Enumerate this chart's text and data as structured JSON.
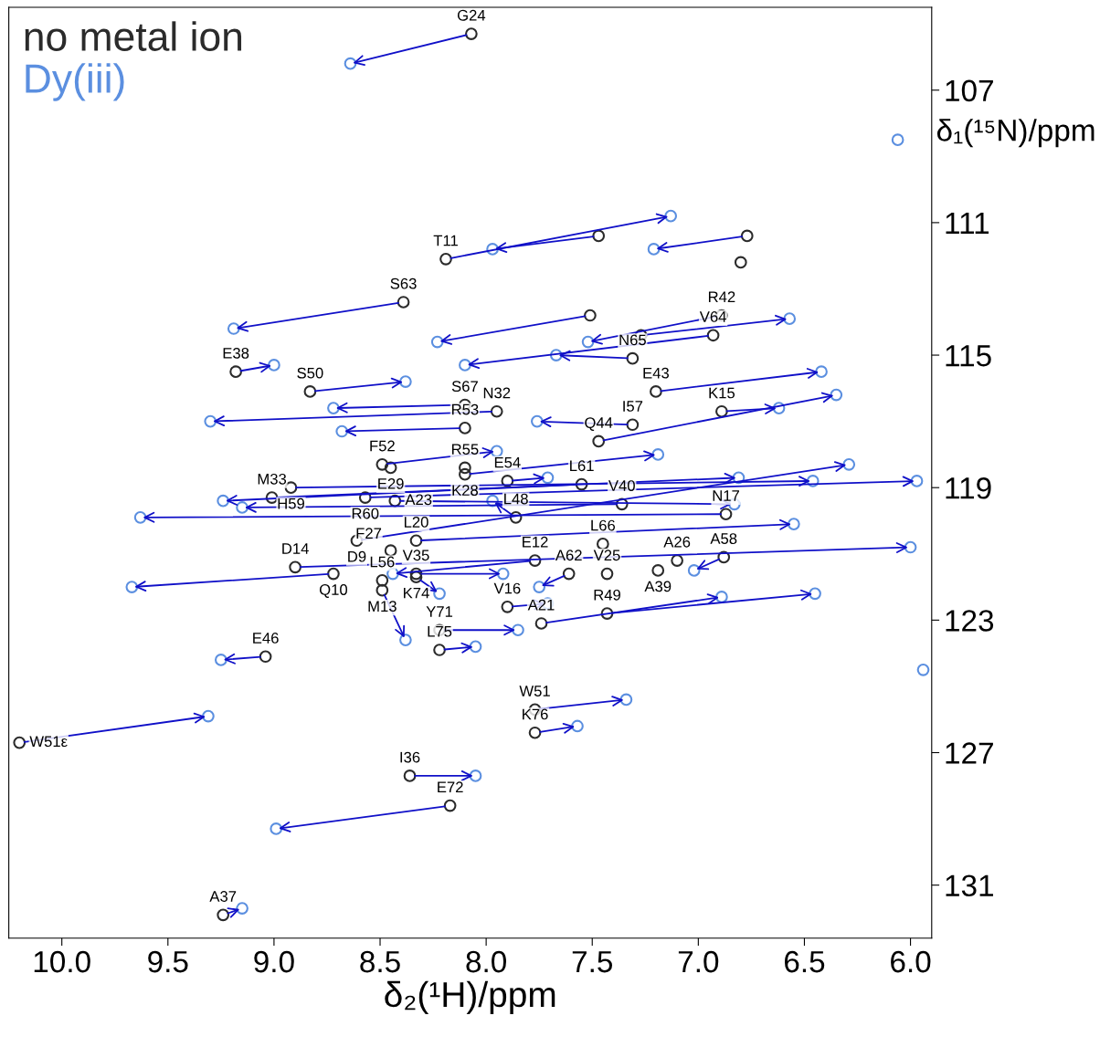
{
  "chart_data": {
    "type": "scatter",
    "xlabel": "δ₂(¹H)/ppm",
    "ylabel": "δ₁(¹⁵N)/ppm",
    "xlim": [
      10.25,
      5.9
    ],
    "xticks": [
      {
        "value": 10.0,
        "label": "10.0"
      },
      9.5,
      {
        "value": 9.0,
        "label": "9.0"
      },
      8.5,
      {
        "value": 8.0,
        "label": "8.0"
      },
      7.5,
      {
        "value": 7.0,
        "label": "7.0"
      },
      6.5,
      {
        "value": 6.0,
        "label": "6.0"
      }
    ],
    "ylim": [
      132.6,
      104.5
    ],
    "yticks": [
      107,
      111,
      115,
      119,
      123,
      127,
      131
    ],
    "grid": false,
    "legend": "top left",
    "marker": "circle",
    "series": [
      {
        "name": "no metal ion",
        "color": "#2b2b2b",
        "x": [
          8.07,
          8.19,
          7.47,
          6.77,
          8.39,
          7.51,
          6.89,
          7.27,
          6.93,
          7.31,
          9.18,
          8.83,
          8.1,
          7.95,
          7.2,
          6.89,
          7.47,
          8.1,
          7.31,
          8.49,
          8.45,
          8.1,
          8.1,
          7.9,
          9.01,
          8.92,
          7.55,
          7.36,
          8.57,
          8.43,
          6.87,
          7.86,
          8.33,
          8.61,
          8.9,
          8.72,
          7.77,
          7.61,
          7.45,
          7.1,
          6.88,
          8.33,
          8.33,
          8.49,
          7.9,
          7.43,
          7.19,
          7.43,
          7.74,
          8.22,
          8.22,
          9.04,
          7.77,
          7.77,
          10.2,
          8.36,
          8.17,
          9.24,
          8.49,
          8.45,
          6.8,
          null,
          null
        ],
        "values": [
          105.3,
          112.1,
          111.4,
          111.4,
          113.4,
          113.8,
          113.8,
          114.4,
          114.4,
          115.1,
          115.5,
          116.1,
          116.5,
          116.7,
          116.1,
          116.7,
          117.6,
          117.2,
          117.1,
          118.3,
          118.4,
          118.4,
          118.6,
          118.8,
          119.3,
          119.0,
          118.9,
          119.5,
          119.3,
          119.4,
          119.8,
          119.9,
          120.6,
          120.6,
          121.4,
          121.6,
          121.2,
          121.6,
          120.7,
          121.2,
          121.1,
          121.6,
          121.7,
          122.1,
          122.6,
          121.6,
          121.5,
          122.8,
          123.1,
          123.3,
          123.9,
          124.1,
          125.7,
          126.4,
          126.7,
          127.7,
          128.6,
          131.9,
          121.8,
          120.9,
          112.2,
          null,
          null
        ]
      },
      {
        "name": "Dy(iii)",
        "color": "#5b8fe0",
        "x": [
          8.64,
          7.13,
          7.97,
          7.21,
          9.19,
          8.23,
          7.52,
          6.57,
          8.1,
          7.67,
          9.0,
          8.38,
          8.72,
          9.3,
          6.42,
          6.62,
          6.35,
          8.68,
          7.76,
          7.95,
          null,
          null,
          7.19,
          7.71,
          6.81,
          6.46,
          9.24,
          9.15,
          5.97,
          6.83,
          9.63,
          7.97,
          6.55,
          6.29,
          6.0,
          9.67,
          8.44,
          7.75,
          null,
          null,
          7.02,
          7.92,
          8.22,
          8.38,
          7.71,
          null,
          null,
          6.45,
          6.89,
          7.85,
          8.05,
          9.25,
          7.34,
          7.57,
          9.31,
          8.05,
          8.99,
          9.15,
          null,
          null,
          null,
          6.06,
          5.94
        ],
        "values": [
          106.2,
          110.8,
          111.8,
          111.8,
          114.2,
          114.6,
          114.6,
          113.9,
          115.3,
          115.0,
          115.3,
          115.8,
          116.6,
          117.0,
          115.5,
          116.6,
          116.2,
          117.3,
          117.0,
          117.9,
          null,
          null,
          118.0,
          118.7,
          118.7,
          118.8,
          119.4,
          119.6,
          118.8,
          119.5,
          119.9,
          119.4,
          120.1,
          118.3,
          120.8,
          122.0,
          121.6,
          122.0,
          null,
          null,
          121.5,
          121.6,
          122.2,
          123.6,
          122.5,
          null,
          null,
          122.2,
          122.3,
          123.3,
          123.8,
          124.2,
          125.4,
          126.2,
          125.9,
          127.7,
          129.3,
          131.7,
          null,
          null,
          null,
          108.5,
          124.5
        ]
      }
    ],
    "annotations": [
      {
        "text": "G24",
        "x": 8.07,
        "y": 105.3
      },
      {
        "text": "T11",
        "x": 8.19,
        "y": 112.1
      },
      {
        "text": "S63",
        "x": 8.39,
        "y": 113.4
      },
      {
        "text": "R42",
        "x": 6.89,
        "y": 113.8
      },
      {
        "text": "V64",
        "x": 6.93,
        "y": 114.4
      },
      {
        "text": "N65",
        "x": 7.31,
        "y": 115.1
      },
      {
        "text": "E38",
        "x": 9.18,
        "y": 115.5
      },
      {
        "text": "S50",
        "x": 8.83,
        "y": 116.1
      },
      {
        "text": "S67",
        "x": 8.1,
        "y": 116.5
      },
      {
        "text": "N32",
        "x": 7.95,
        "y": 116.7
      },
      {
        "text": "E43",
        "x": 7.2,
        "y": 116.1
      },
      {
        "text": "K15",
        "x": 6.89,
        "y": 116.7
      },
      {
        "text": "Q44",
        "x": 7.47,
        "y": 117.6
      },
      {
        "text": "R53",
        "x": 8.1,
        "y": 117.2
      },
      {
        "text": "I57",
        "x": 7.31,
        "y": 117.1
      },
      {
        "text": "F52",
        "x": 8.49,
        "y": 118.3
      },
      {
        "text": "E29",
        "x": 8.45,
        "y": 118.4
      },
      {
        "text": "R55",
        "x": 8.1,
        "y": 118.4
      },
      {
        "text": "K28",
        "x": 8.1,
        "y": 118.6
      },
      {
        "text": "E54",
        "x": 7.9,
        "y": 118.8
      },
      {
        "text": "M33",
        "x": 9.01,
        "y": 119.3
      },
      {
        "text": "H59",
        "x": 8.92,
        "y": 119.0
      },
      {
        "text": "L61",
        "x": 7.55,
        "y": 118.9
      },
      {
        "text": "V40",
        "x": 7.36,
        "y": 119.5
      },
      {
        "text": "R60",
        "x": 8.57,
        "y": 119.3
      },
      {
        "text": "A23",
        "x": 8.43,
        "y": 119.4
      },
      {
        "text": "N17",
        "x": 6.87,
        "y": 119.8
      },
      {
        "text": "L48",
        "x": 7.86,
        "y": 119.9
      },
      {
        "text": "L20",
        "x": 8.33,
        "y": 120.6
      },
      {
        "text": "D9",
        "x": 8.61,
        "y": 120.6
      },
      {
        "text": "D14",
        "x": 8.9,
        "y": 121.4
      },
      {
        "text": "Q10",
        "x": 8.72,
        "y": 121.6
      },
      {
        "text": "E12",
        "x": 7.77,
        "y": 121.2
      },
      {
        "text": "A62",
        "x": 7.61,
        "y": 121.6
      },
      {
        "text": "L66",
        "x": 7.45,
        "y": 120.7
      },
      {
        "text": "A26",
        "x": 7.1,
        "y": 121.2
      },
      {
        "text": "A58",
        "x": 6.88,
        "y": 121.1
      },
      {
        "text": "V35",
        "x": 8.33,
        "y": 121.6
      },
      {
        "text": "K74",
        "x": 8.33,
        "y": 121.7
      },
      {
        "text": "M13",
        "x": 8.49,
        "y": 122.1
      },
      {
        "text": "V16",
        "x": 7.9,
        "y": 122.6
      },
      {
        "text": "V25",
        "x": 7.43,
        "y": 121.6
      },
      {
        "text": "A39",
        "x": 7.19,
        "y": 121.5
      },
      {
        "text": "R49",
        "x": 7.43,
        "y": 122.8
      },
      {
        "text": "A21",
        "x": 7.74,
        "y": 123.1
      },
      {
        "text": "Y71",
        "x": 8.22,
        "y": 123.3
      },
      {
        "text": "L75",
        "x": 8.22,
        "y": 123.9
      },
      {
        "text": "E46",
        "x": 9.04,
        "y": 124.1
      },
      {
        "text": "W51",
        "x": 7.77,
        "y": 125.7
      },
      {
        "text": "K76",
        "x": 7.77,
        "y": 126.4
      },
      {
        "text": "W51ε",
        "x": 10.2,
        "y": 126.7
      },
      {
        "text": "I36",
        "x": 8.36,
        "y": 127.7
      },
      {
        "text": "E72",
        "x": 8.17,
        "y": 128.6
      },
      {
        "text": "A37",
        "x": 9.24,
        "y": 131.9
      },
      {
        "text": "L56",
        "x": 8.49,
        "y": 121.8
      },
      {
        "text": "F27",
        "x": 8.45,
        "y": 120.9
      }
    ]
  }
}
